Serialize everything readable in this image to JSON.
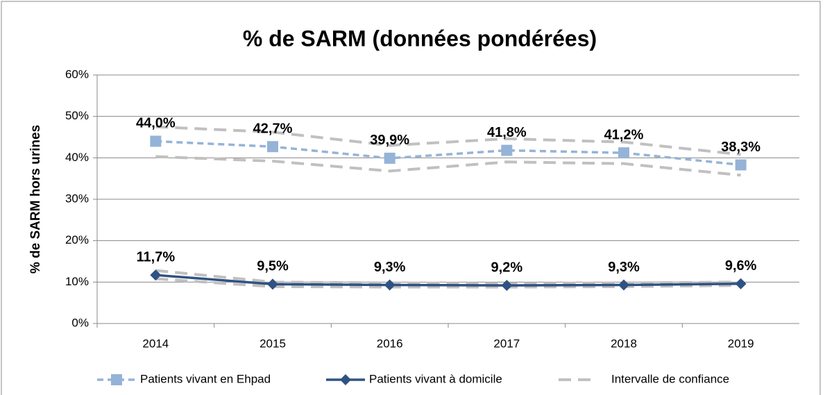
{
  "chart_data": {
    "type": "line",
    "title": "% de SARM (données pondérées)",
    "y_label": "% de SARM hors urines",
    "categories": [
      "2014",
      "2015",
      "2016",
      "2017",
      "2018",
      "2019"
    ],
    "series": [
      {
        "name": "Patients vivant en Ehpad",
        "color": "#95b3d7",
        "marker": "square",
        "dashed": true,
        "values": [
          44.0,
          42.7,
          39.9,
          41.8,
          41.2,
          38.3
        ],
        "value_labels": [
          "44,0%",
          "42,7%",
          "39,9%",
          "41,8%",
          "41,2%",
          "38,3%"
        ]
      },
      {
        "name": "Patients vivant à domicile",
        "color": "#2f5283",
        "marker": "diamond",
        "dashed": false,
        "values": [
          11.7,
          9.5,
          9.3,
          9.2,
          9.3,
          9.6
        ],
        "value_labels": [
          "11,7%",
          "9,5%",
          "9,3%",
          "9,2%",
          "9,3%",
          "9,6%"
        ]
      }
    ],
    "confidence_interval": {
      "name": "Intervalle de confiance",
      "color": "#c0c0c0",
      "bands": [
        {
          "upper": [
            47.5,
            46.2,
            43.0,
            44.6,
            43.8,
            40.8
          ],
          "lower": [
            40.3,
            39.2,
            36.8,
            39.0,
            38.6,
            35.8
          ]
        },
        {
          "upper": [
            12.8,
            10.0,
            9.8,
            9.6,
            9.8,
            10.0
          ],
          "lower": [
            10.8,
            8.9,
            8.8,
            8.8,
            8.9,
            9.2
          ]
        }
      ]
    },
    "ylim": [
      0,
      60
    ],
    "yticks": [
      {
        "value": 0,
        "label": "0%"
      },
      {
        "value": 10,
        "label": "10%"
      },
      {
        "value": 20,
        "label": "20%"
      },
      {
        "value": 30,
        "label": "30%"
      },
      {
        "value": 40,
        "label": "40%"
      },
      {
        "value": 50,
        "label": "50%"
      },
      {
        "value": 60,
        "label": "60%"
      }
    ],
    "grid": true
  }
}
